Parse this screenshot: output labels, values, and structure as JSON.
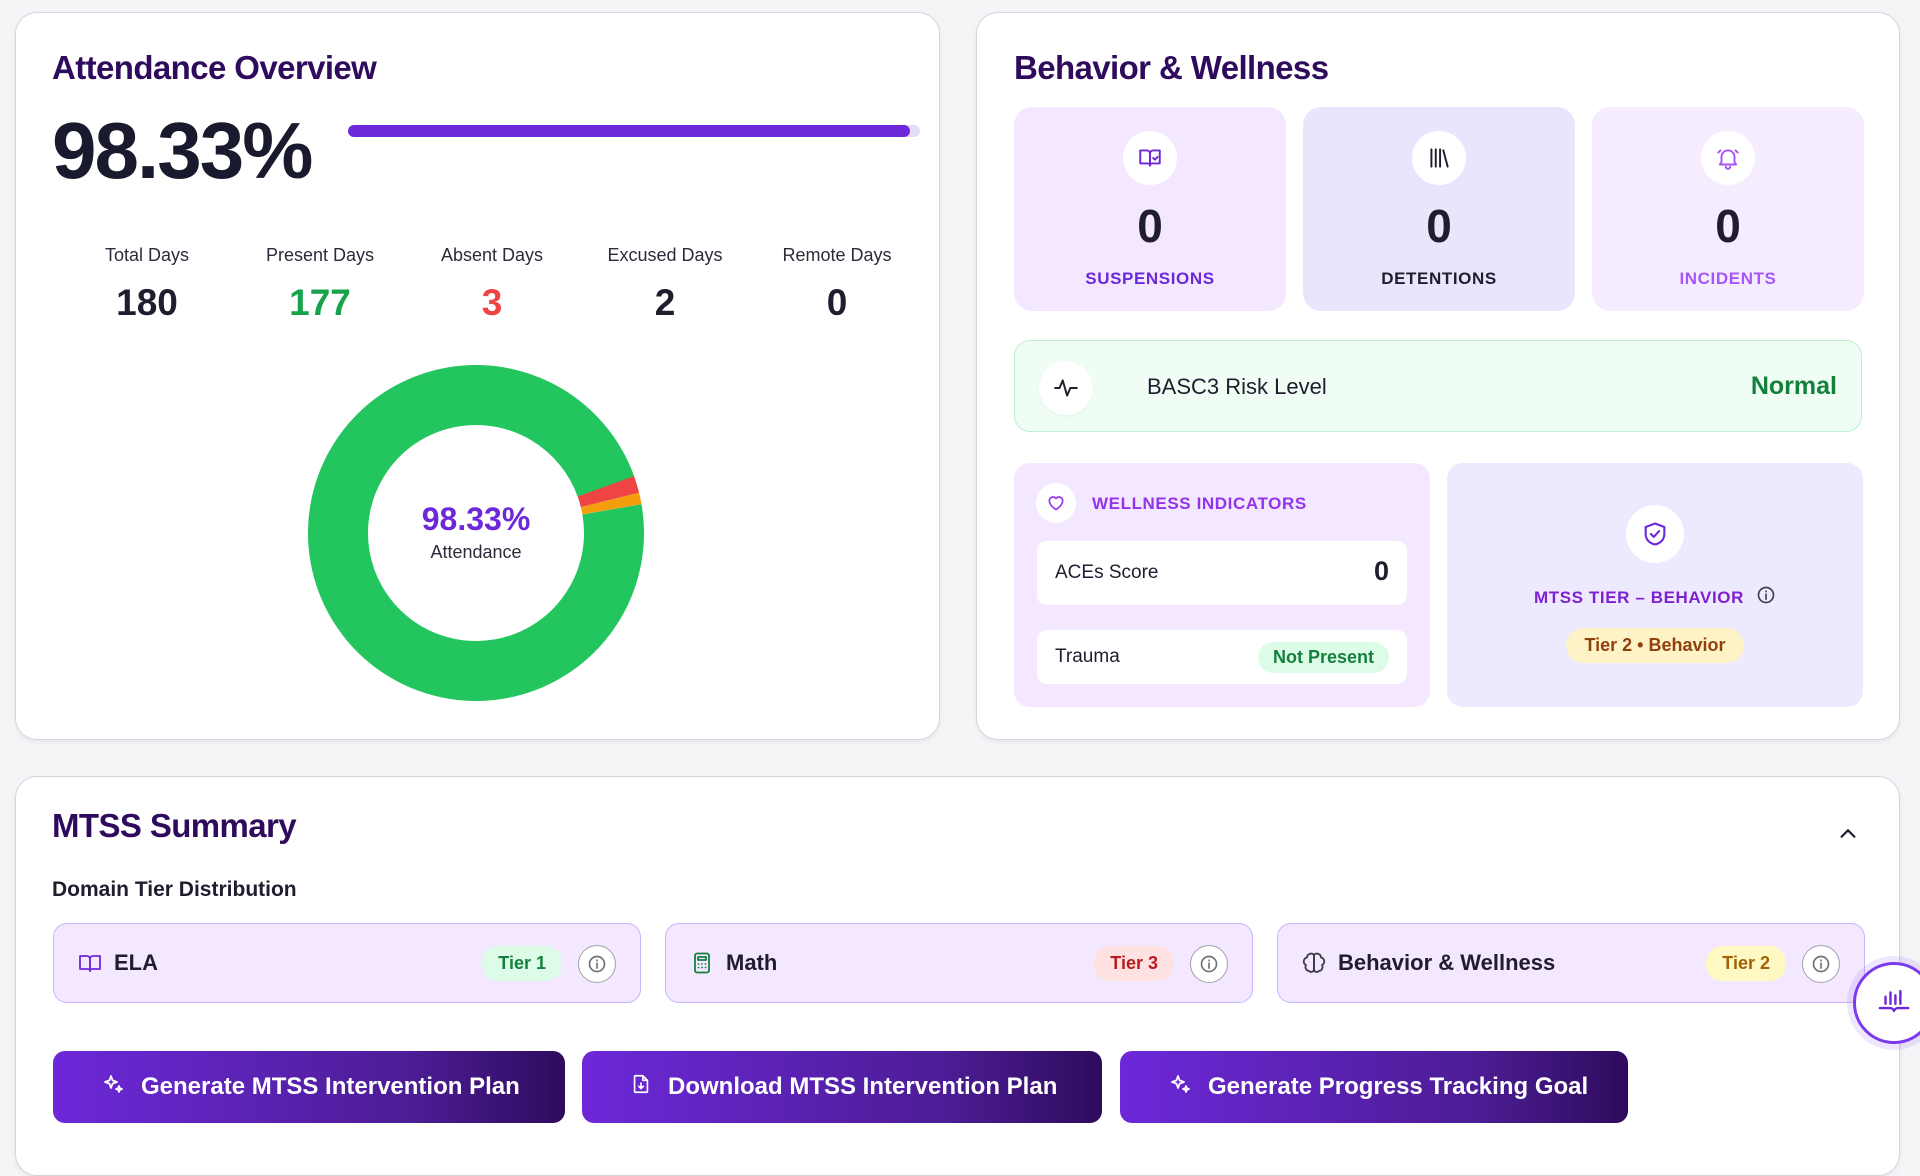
{
  "attendance": {
    "title": "Attendance Overview",
    "percent": "98.33%",
    "progress_fraction": 0.9833,
    "stats": [
      {
        "label": "Total Days",
        "value": "180"
      },
      {
        "label": "Present Days",
        "value": "177"
      },
      {
        "label": "Absent Days",
        "value": "3"
      },
      {
        "label": "Excused Days",
        "value": "2"
      },
      {
        "label": "Remote Days",
        "value": "0"
      }
    ],
    "donut": {
      "center_value": "98.33%",
      "center_label": "Attendance",
      "segments": [
        {
          "name": "Present",
          "value": 177,
          "color": "#22c55e"
        },
        {
          "name": "Absent",
          "value": 3,
          "color": "#ef4444"
        },
        {
          "name": "Excused",
          "value": 2,
          "color": "#f59e0b"
        }
      ]
    },
    "colors": {
      "present": "#16a34a",
      "absent": "#ef4444",
      "accent": "#6d28d9"
    }
  },
  "behavior": {
    "title": "Behavior & Wellness",
    "tiles": [
      {
        "icon": "open-book-icon",
        "value": "0",
        "label": "SUSPENSIONS"
      },
      {
        "icon": "library-icon",
        "value": "0",
        "label": "DETENTIONS"
      },
      {
        "icon": "bell-ring-icon",
        "value": "0",
        "label": "INCIDENTS"
      }
    ],
    "risk": {
      "icon": "activity-icon",
      "label": "BASC3 Risk Level",
      "value": "Normal"
    },
    "wellness": {
      "icon": "heart-icon",
      "header": "WELLNESS INDICATORS",
      "aces_label": "ACEs Score",
      "aces_value": "0",
      "trauma_label": "Trauma",
      "trauma_value": "Not Present"
    },
    "mtss": {
      "icon": "shield-check-icon",
      "label": "MTSS TIER – BEHAVIOR",
      "tag": "Tier 2 • Behavior"
    }
  },
  "summary": {
    "title": "MTSS Summary",
    "subtitle": "Domain Tier Distribution",
    "domains": [
      {
        "icon": "book-icon",
        "name": "ELA",
        "tier": "Tier 1"
      },
      {
        "icon": "calculator-icon",
        "name": "Math",
        "tier": "Tier 3"
      },
      {
        "icon": "brain-icon",
        "name": "Behavior & Wellness",
        "tier": "Tier 2"
      }
    ],
    "actions": [
      {
        "icon": "sparkles-icon",
        "label": "Generate MTSS Intervention Plan"
      },
      {
        "icon": "file-download-icon",
        "label": "Download MTSS Intervention Plan"
      },
      {
        "icon": "sparkles-icon",
        "label": "Generate Progress Tracking Goal"
      }
    ]
  }
}
